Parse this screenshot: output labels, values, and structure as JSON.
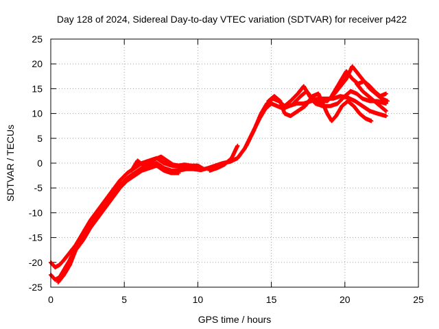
{
  "chart_data": {
    "type": "scatter",
    "title": "Day 128 of 2024, Sidereal Day-to-day VTEC variation (SDTVAR) for receiver p422",
    "xlabel": "GPS time / hours",
    "ylabel": "SDTVAR / TECUs",
    "xlim": [
      0,
      25
    ],
    "ylim": [
      -25,
      25
    ],
    "xticks": [
      0,
      5,
      10,
      15,
      20,
      25
    ],
    "yticks": [
      -25,
      -20,
      -15,
      -10,
      -5,
      0,
      5,
      10,
      15,
      20,
      25
    ],
    "grid": true,
    "marker": "+",
    "series": [
      {
        "color": "#ff0000",
        "tracks": [
          [
            [
              0.0,
              -22.5
            ],
            [
              0.3,
              -23.5
            ],
            [
              0.6,
              -23.0
            ],
            [
              0.9,
              -21.5
            ],
            [
              1.3,
              -19.5
            ],
            [
              1.7,
              -17.0
            ],
            [
              2.2,
              -15.0
            ],
            [
              2.7,
              -12.5
            ],
            [
              3.2,
              -10.5
            ],
            [
              3.7,
              -8.5
            ],
            [
              4.2,
              -6.5
            ],
            [
              4.7,
              -4.5
            ],
            [
              5.2,
              -3.0
            ],
            [
              5.7,
              -2.0
            ],
            [
              6.2,
              -1.0
            ],
            [
              6.7,
              -0.5
            ],
            [
              7.2,
              0.0
            ],
            [
              7.7,
              -1.0
            ],
            [
              8.2,
              -1.5
            ],
            [
              8.7,
              -1.5
            ],
            [
              9.2,
              -1.2
            ],
            [
              9.7,
              -1.2
            ],
            [
              10.2,
              -1.4
            ],
            [
              10.7,
              -1.0
            ],
            [
              11.2,
              -0.5
            ],
            [
              11.7,
              0.0
            ],
            [
              12.2,
              0.3
            ],
            [
              12.7,
              1.0
            ],
            [
              13.2,
              3.0
            ],
            [
              13.7,
              6.0
            ],
            [
              14.2,
              9.0
            ],
            [
              14.6,
              11.0
            ],
            [
              15.0,
              12.0
            ],
            [
              15.4,
              11.5
            ],
            [
              15.8,
              11.0
            ],
            [
              16.2,
              11.5
            ],
            [
              16.7,
              12.0
            ],
            [
              17.2,
              12.0
            ],
            [
              17.7,
              12.5
            ],
            [
              18.2,
              13.0
            ],
            [
              18.7,
              13.0
            ],
            [
              19.2,
              13.0
            ],
            [
              19.7,
              13.5
            ],
            [
              20.2,
              13.2
            ],
            [
              20.7,
              12.5
            ],
            [
              21.2,
              11.5
            ],
            [
              21.7,
              10.5
            ],
            [
              22.2,
              10.0
            ],
            [
              22.8,
              9.5
            ]
          ],
          [
            [
              0.0,
              -20.0
            ],
            [
              0.3,
              -21.0
            ],
            [
              0.6,
              -20.5
            ],
            [
              0.9,
              -19.5
            ],
            [
              1.3,
              -18.0
            ],
            [
              1.7,
              -16.5
            ],
            [
              2.2,
              -14.0
            ],
            [
              2.7,
              -11.5
            ],
            [
              3.2,
              -9.5
            ],
            [
              3.7,
              -7.5
            ],
            [
              4.2,
              -5.5
            ],
            [
              4.7,
              -3.5
            ],
            [
              5.2,
              -2.0
            ],
            [
              5.7,
              -1.0
            ],
            [
              6.2,
              0.0
            ],
            [
              6.7,
              0.5
            ],
            [
              7.2,
              1.0
            ],
            [
              7.7,
              0.0
            ],
            [
              8.2,
              -0.5
            ],
            [
              8.7,
              -0.7
            ],
            [
              9.2,
              -0.6
            ],
            [
              9.7,
              -0.8
            ],
            [
              10.2,
              -1.0
            ]
          ],
          [
            [
              0.5,
              -24.0
            ],
            [
              0.9,
              -22.5
            ],
            [
              1.3,
              -20.5
            ],
            [
              1.7,
              -17.5
            ],
            [
              2.2,
              -15.5
            ],
            [
              2.7,
              -13.0
            ],
            [
              3.2,
              -11.0
            ],
            [
              3.7,
              -9.0
            ],
            [
              4.2,
              -7.0
            ],
            [
              4.7,
              -5.0
            ],
            [
              5.2,
              -3.5
            ],
            [
              5.7,
              -2.5
            ],
            [
              6.2,
              -1.5
            ],
            [
              6.7,
              -1.0
            ],
            [
              7.2,
              -0.5
            ],
            [
              7.7,
              -1.5
            ],
            [
              8.2,
              -2.0
            ],
            [
              8.7,
              -2.0
            ]
          ],
          [
            [
              5.5,
              -1.5
            ],
            [
              5.9,
              0.5
            ],
            [
              6.3,
              -0.5
            ],
            [
              6.7,
              0.2
            ],
            [
              7.1,
              0.8
            ],
            [
              7.5,
              1.3
            ],
            [
              7.9,
              0.5
            ],
            [
              8.3,
              -0.3
            ],
            [
              8.7,
              -0.5
            ],
            [
              9.1,
              -0.3
            ],
            [
              9.5,
              -0.5
            ],
            [
              10.0,
              -0.5
            ],
            [
              10.4,
              -1.2
            ]
          ],
          [
            [
              10.8,
              -1.5
            ],
            [
              11.3,
              -1.0
            ],
            [
              11.8,
              -0.3
            ],
            [
              12.3,
              1.0
            ],
            [
              12.7,
              3.5
            ]
          ],
          [
            [
              13.3,
              3.5
            ],
            [
              13.8,
              6.5
            ],
            [
              14.3,
              10.0
            ],
            [
              14.7,
              12.0
            ],
            [
              15.1,
              13.0
            ],
            [
              15.5,
              12.5
            ],
            [
              15.9,
              11.5
            ],
            [
              16.3,
              12.5
            ],
            [
              16.8,
              14.0
            ],
            [
              17.2,
              15.5
            ],
            [
              17.6,
              13.5
            ],
            [
              18.0,
              12.0
            ],
            [
              18.5,
              11.5
            ],
            [
              19.0,
              11.5
            ],
            [
              19.5,
              12.0
            ],
            [
              20.0,
              13.5
            ],
            [
              20.4,
              14.5
            ],
            [
              20.8,
              14.0
            ],
            [
              21.2,
              13.0
            ],
            [
              21.7,
              12.5
            ],
            [
              22.2,
              12.5
            ],
            [
              22.8,
              12.0
            ]
          ],
          [
            [
              14.8,
              12.5
            ],
            [
              15.2,
              13.5
            ],
            [
              15.6,
              12.5
            ],
            [
              15.9,
              10.0
            ],
            [
              16.3,
              9.5
            ],
            [
              16.8,
              10.5
            ],
            [
              17.3,
              11.5
            ],
            [
              17.8,
              13.5
            ],
            [
              18.2,
              14.0
            ],
            [
              18.5,
              12.0
            ],
            [
              18.8,
              10.0
            ],
            [
              19.1,
              8.5
            ],
            [
              19.4,
              9.5
            ],
            [
              19.8,
              11.5
            ],
            [
              20.2,
              12.5
            ],
            [
              20.6,
              11.5
            ],
            [
              21.0,
              10.0
            ],
            [
              21.4,
              9.0
            ],
            [
              21.8,
              8.5
            ]
          ],
          [
            [
              16.5,
              12.0
            ],
            [
              17.0,
              13.5
            ],
            [
              17.4,
              14.5
            ],
            [
              17.8,
              13.0
            ],
            [
              18.3,
              12.5
            ],
            [
              18.8,
              12.5
            ],
            [
              19.3,
              14.0
            ],
            [
              19.7,
              15.5
            ],
            [
              20.1,
              17.0
            ],
            [
              20.5,
              19.5
            ],
            [
              20.9,
              18.0
            ],
            [
              21.3,
              16.5
            ],
            [
              21.7,
              15.0
            ],
            [
              22.1,
              14.0
            ],
            [
              22.5,
              13.0
            ],
            [
              22.9,
              12.5
            ]
          ],
          [
            [
              19.0,
              13.0
            ],
            [
              19.4,
              15.0
            ],
            [
              19.8,
              17.0
            ],
            [
              20.1,
              18.5
            ],
            [
              20.5,
              17.0
            ],
            [
              20.9,
              16.0
            ],
            [
              21.3,
              16.5
            ],
            [
              21.7,
              15.5
            ],
            [
              22.0,
              14.5
            ],
            [
              22.4,
              13.5
            ],
            [
              22.8,
              14.0
            ]
          ],
          [
            [
              20.8,
              16.0
            ],
            [
              21.2,
              14.5
            ],
            [
              21.6,
              13.5
            ],
            [
              22.0,
              12.5
            ],
            [
              22.4,
              11.5
            ],
            [
              22.8,
              10.5
            ]
          ]
        ]
      }
    ]
  }
}
